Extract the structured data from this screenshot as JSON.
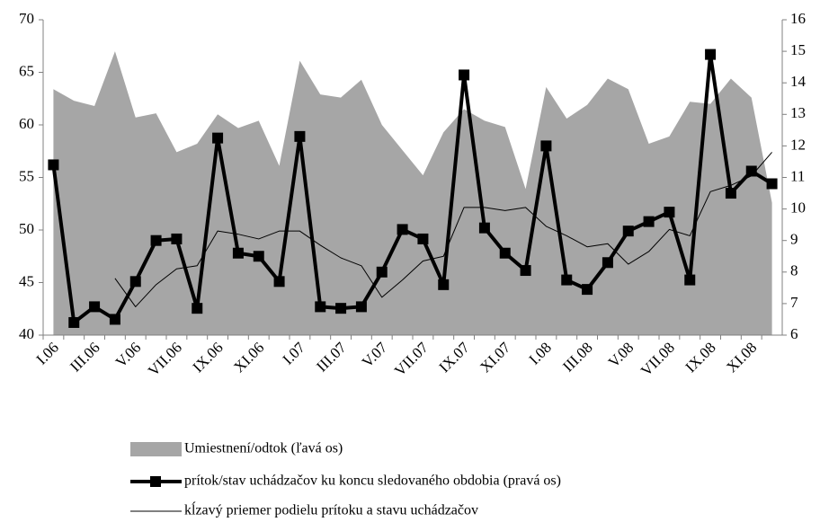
{
  "chart_data": {
    "type": "combo",
    "categories": [
      "I.06",
      null,
      "III.06",
      null,
      "V.06",
      null,
      "VII.06",
      null,
      "IX.06",
      null,
      "XI.06",
      null,
      "I.07",
      null,
      "III.07",
      null,
      "V.07",
      null,
      "VII.07",
      null,
      "IX.07",
      null,
      "XI.07",
      null,
      "I.08",
      null,
      "III.08",
      null,
      "V.08",
      null,
      "VII.08",
      null,
      "IX.08",
      null,
      "XI.08",
      null
    ],
    "series": [
      {
        "name": "Umiestnení/odtok (ľavá os)",
        "type": "area",
        "axis": "y",
        "color": "#a6a6a6",
        "values": [
          63.4,
          62.3,
          61.8,
          67.0,
          60.7,
          61.1,
          57.4,
          58.2,
          61.0,
          59.7,
          60.4,
          56.1,
          66.1,
          62.9,
          62.6,
          64.3,
          60.0,
          57.6,
          55.2,
          59.3,
          61.5,
          60.4,
          59.8,
          53.9,
          63.6,
          60.6,
          61.9,
          64.4,
          63.4,
          58.2,
          58.9,
          62.2,
          62.0,
          64.4,
          62.6,
          52.6
        ]
      },
      {
        "name": "prítok/stav uchádzačov ku koncu sledovaného obdobia (pravá os)",
        "type": "line-marker",
        "axis": "y2",
        "color": "#000000",
        "values": [
          11.4,
          6.4,
          6.9,
          6.5,
          7.7,
          9.0,
          9.05,
          6.85,
          12.25,
          8.6,
          8.5,
          7.7,
          12.3,
          6.9,
          6.85,
          6.9,
          8.0,
          9.35,
          9.05,
          7.6,
          14.25,
          9.4,
          8.6,
          8.05,
          12.0,
          7.75,
          7.45,
          8.3,
          9.3,
          9.6,
          9.9,
          7.75,
          14.9,
          10.5,
          11.2,
          10.8
        ]
      },
      {
        "name": "kĺzavý priemer podielu prítoku a stavu uchádzačov",
        "type": "line",
        "axis": "y2",
        "color": "#000000",
        "values": [
          null,
          null,
          null,
          7.8,
          6.9,
          7.6,
          8.1,
          8.2,
          9.3,
          9.2,
          9.05,
          9.3,
          9.3,
          8.85,
          8.45,
          8.2,
          7.2,
          7.75,
          8.35,
          8.5,
          10.05,
          10.05,
          9.95,
          10.05,
          9.45,
          9.15,
          8.8,
          8.9,
          8.25,
          8.65,
          9.35,
          9.15,
          10.55,
          10.75,
          11.05,
          11.8
        ]
      }
    ],
    "ylim": [
      40,
      70
    ],
    "yticks": [
      40,
      45,
      50,
      55,
      60,
      65,
      70
    ],
    "y2lim": [
      6,
      16
    ],
    "y2ticks": [
      6,
      7,
      8,
      9,
      10,
      11,
      12,
      13,
      14,
      15,
      16
    ],
    "legend": "bottom"
  }
}
